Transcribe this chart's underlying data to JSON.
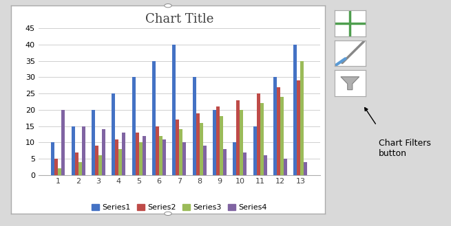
{
  "title": "Chart Title",
  "categories": [
    1,
    2,
    3,
    4,
    5,
    6,
    7,
    8,
    9,
    10,
    11,
    12,
    13
  ],
  "series": {
    "Series1": [
      10,
      15,
      20,
      25,
      30,
      35,
      40,
      30,
      20,
      10,
      15,
      30,
      40
    ],
    "Series2": [
      5,
      7,
      9,
      11,
      13,
      15,
      17,
      19,
      21,
      23,
      25,
      27,
      29
    ],
    "Series3": [
      2,
      4,
      6,
      8,
      10,
      12,
      14,
      16,
      18,
      20,
      22,
      24,
      35
    ],
    "Series4": [
      20,
      15,
      14,
      13,
      12,
      11,
      10,
      9,
      8,
      7,
      6,
      5,
      4
    ]
  },
  "colors": {
    "Series1": "#4472C4",
    "Series2": "#BE4B48",
    "Series3": "#9BBB59",
    "Series4": "#8064A2"
  },
  "ylim": [
    0,
    45
  ],
  "yticks": [
    0,
    5,
    10,
    15,
    20,
    25,
    30,
    35,
    40,
    45
  ],
  "chart_bg": "#FFFFFF",
  "outer_bg": "#D9D9D9",
  "grid_color": "#C8C8C8",
  "title_fontsize": 13,
  "legend_fontsize": 8,
  "tick_fontsize": 8,
  "bar_width": 0.17,
  "annotation_text": "Chart Filters\nbutton",
  "chart_border_color": "#ABABAB",
  "btn_plus_color": "#4E9E4E",
  "btn_brush_color": "#5B9BD5",
  "btn_filter_color": "#808080"
}
